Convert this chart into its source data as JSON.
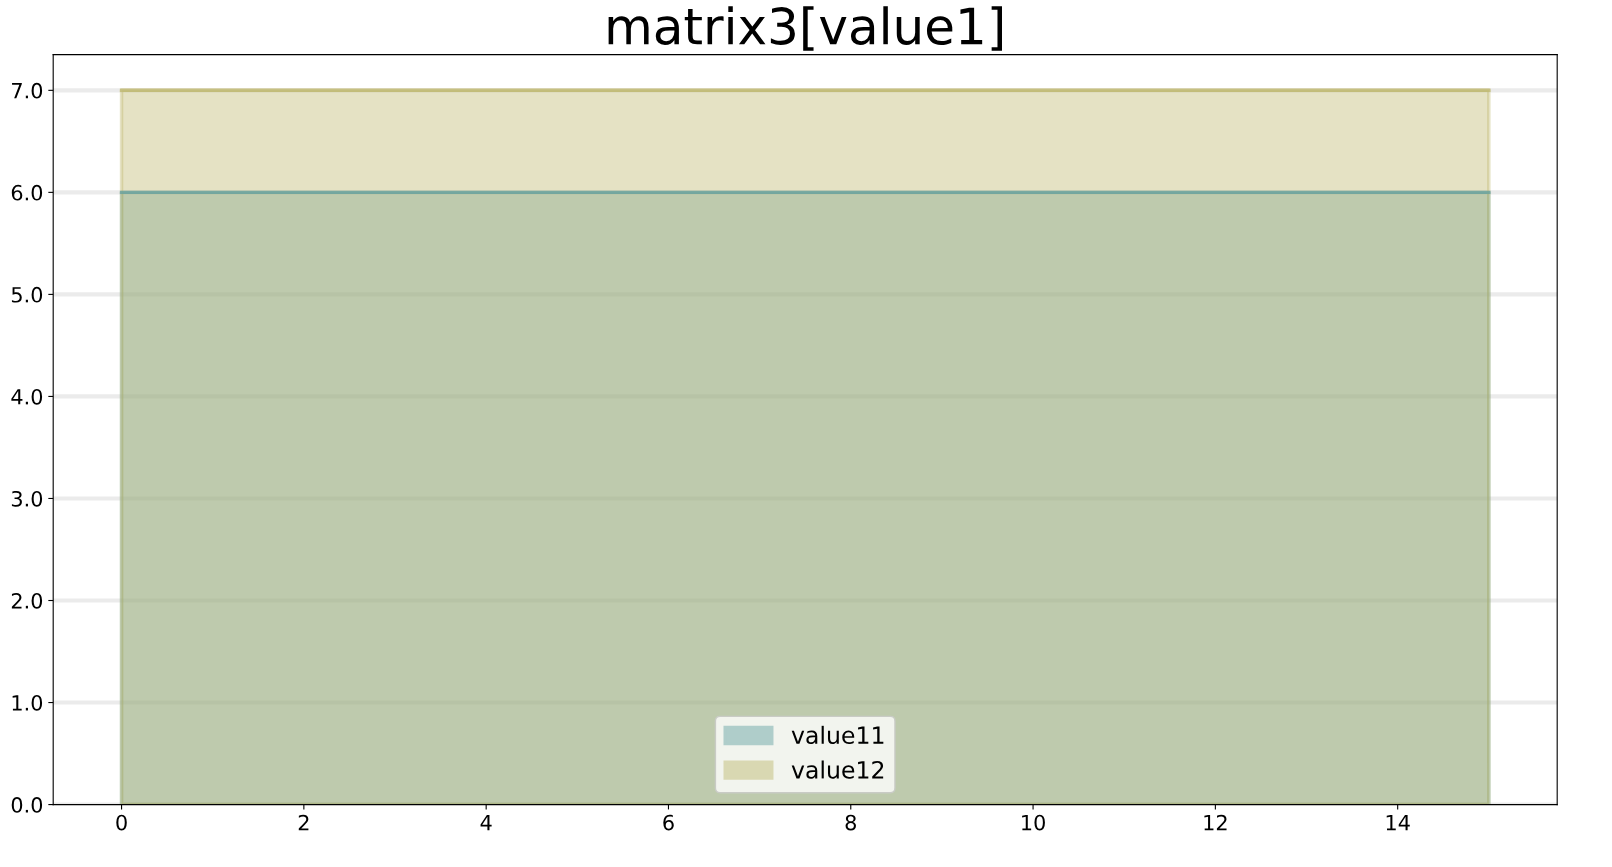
{
  "chart_data": {
    "type": "area",
    "title": "matrix3[value1]",
    "x": [
      0,
      15
    ],
    "series": [
      {
        "name": "value11",
        "color": "#5f9ea0",
        "values": [
          6,
          6
        ]
      },
      {
        "name": "value12",
        "color": "#bdb76b",
        "values": [
          7,
          7
        ]
      }
    ],
    "xlim": [
      -0.75,
      15.75
    ],
    "xticks": [
      0,
      2,
      4,
      6,
      8,
      10,
      12,
      14
    ],
    "ylim": [
      0,
      7.35
    ],
    "yticks": [
      {
        "value": 0,
        "label": "0.0"
      },
      {
        "value": 1,
        "label": "1.0"
      },
      {
        "value": 2,
        "label": "2.0"
      },
      {
        "value": 3,
        "label": "3.0"
      },
      {
        "value": 4,
        "label": "4.0"
      },
      {
        "value": 5,
        "label": "5.0"
      },
      {
        "value": 6,
        "label": "6.0"
      },
      {
        "value": 7,
        "label": "7.0"
      }
    ],
    "grid": "y",
    "legend": "bottom"
  }
}
